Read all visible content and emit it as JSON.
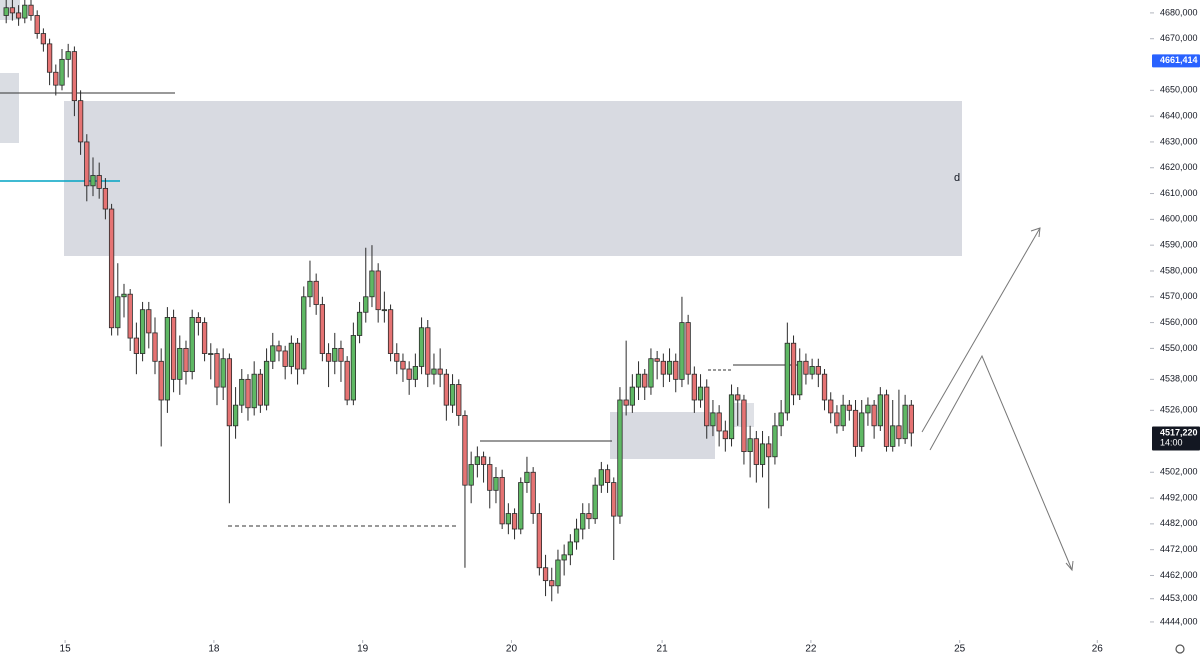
{
  "chart_data": {
    "type": "candlestick",
    "up_color": "#5fb864",
    "down_color": "#e57373",
    "border_color": "#2a2a2a",
    "xlim": [
      -1,
      184.5
    ],
    "xticks": [
      {
        "value": 9.5,
        "label": "15"
      },
      {
        "value": 33.5,
        "label": "18"
      },
      {
        "value": 57.5,
        "label": "19"
      },
      {
        "value": 81.5,
        "label": "20"
      },
      {
        "value": 105.8,
        "label": "21"
      },
      {
        "value": 129.8,
        "label": "22"
      },
      {
        "value": 153.8,
        "label": "25"
      },
      {
        "value": 176,
        "label": "26"
      }
    ],
    "ylim": [
      4437,
      4685
    ],
    "yticks": [
      {
        "value": 4680,
        "label": "4680,000"
      },
      {
        "value": 4670,
        "label": "4670,000"
      },
      {
        "value": 4650,
        "label": "4650,000"
      },
      {
        "value": 4640,
        "label": "4640,000"
      },
      {
        "value": 4630,
        "label": "4630,000"
      },
      {
        "value": 4620,
        "label": "4620,000"
      },
      {
        "value": 4610,
        "label": "4610,000"
      },
      {
        "value": 4600,
        "label": "4600,000"
      },
      {
        "value": 4590,
        "label": "4590,000"
      },
      {
        "value": 4580,
        "label": "4580,000"
      },
      {
        "value": 4570,
        "label": "4570,000"
      },
      {
        "value": 4560,
        "label": "4560,000"
      },
      {
        "value": 4550,
        "label": "4550,000"
      },
      {
        "value": 4538,
        "label": "4538,000"
      },
      {
        "value": 4526,
        "label": "4526,000"
      },
      {
        "value": 4502,
        "label": "4502,000"
      },
      {
        "value": 4492,
        "label": "4492,000"
      },
      {
        "value": 4482,
        "label": "4482,000"
      },
      {
        "value": 4472,
        "label": "4472,000"
      },
      {
        "value": 4462,
        "label": "4462,000"
      },
      {
        "value": 4453,
        "label": "4453,000"
      },
      {
        "value": 4444,
        "label": "4444,000"
      }
    ],
    "price_tags": [
      {
        "value": 4661.414,
        "label": "4661,414",
        "color": "#2962ff"
      },
      {
        "value": 4517.22,
        "label": "4517,220",
        "time": "14:00",
        "color": "#131722"
      }
    ],
    "zone_label": "d",
    "ohlc": [
      [
        4679,
        4685,
        4676,
        4682
      ],
      [
        4682,
        4685,
        4677,
        4680
      ],
      [
        4680,
        4683,
        4675,
        4678
      ],
      [
        4678,
        4685,
        4676,
        4683
      ],
      [
        4683,
        4685,
        4677,
        4679
      ],
      [
        4679,
        4681,
        4670,
        4672
      ],
      [
        4672,
        4674,
        4665,
        4668
      ],
      [
        4668,
        4670,
        4652,
        4657
      ],
      [
        4657,
        4660,
        4648,
        4652
      ],
      [
        4652,
        4666,
        4650,
        4662
      ],
      [
        4662,
        4668,
        4655,
        4665
      ],
      [
        4665,
        4667,
        4640,
        4646
      ],
      [
        4646,
        4650,
        4625,
        4630
      ],
      [
        4630,
        4633,
        4607,
        4613
      ],
      [
        4613,
        4624,
        4609,
        4617
      ],
      [
        4617,
        4622,
        4608,
        4612
      ],
      [
        4612,
        4616,
        4600,
        4604
      ],
      [
        4604,
        4606,
        4555,
        4558
      ],
      [
        4558,
        4583,
        4555,
        4570
      ],
      [
        4570,
        4575,
        4562,
        4571
      ],
      [
        4571,
        4573,
        4549,
        4554
      ],
      [
        4554,
        4560,
        4540,
        4548
      ],
      [
        4548,
        4568,
        4545,
        4565
      ],
      [
        4565,
        4568,
        4550,
        4556
      ],
      [
        4556,
        4562,
        4540,
        4545
      ],
      [
        4545,
        4550,
        4512,
        4530
      ],
      [
        4530,
        4566,
        4525,
        4562
      ],
      [
        4562,
        4565,
        4533,
        4538
      ],
      [
        4538,
        4555,
        4532,
        4550
      ],
      [
        4550,
        4553,
        4536,
        4541
      ],
      [
        4541,
        4565,
        4538,
        4562
      ],
      [
        4562,
        4564,
        4555,
        4560
      ],
      [
        4560,
        4562,
        4545,
        4548
      ],
      [
        4548,
        4552,
        4538,
        4548
      ],
      [
        4548,
        4550,
        4528,
        4535
      ],
      [
        4535,
        4550,
        4530,
        4546
      ],
      [
        4546,
        4548,
        4490,
        4520
      ],
      [
        4520,
        4535,
        4515,
        4528
      ],
      [
        4528,
        4542,
        4525,
        4538
      ],
      [
        4538,
        4540,
        4522,
        4527
      ],
      [
        4527,
        4545,
        4524,
        4540
      ],
      [
        4540,
        4542,
        4525,
        4528
      ],
      [
        4528,
        4550,
        4526,
        4545
      ],
      [
        4545,
        4556,
        4542,
        4551
      ],
      [
        4551,
        4553,
        4545,
        4549
      ],
      [
        4549,
        4551,
        4538,
        4543
      ],
      [
        4543,
        4555,
        4540,
        4552
      ],
      [
        4552,
        4554,
        4536,
        4542
      ],
      [
        4542,
        4574,
        4540,
        4570
      ],
      [
        4570,
        4584,
        4566,
        4576
      ],
      [
        4576,
        4579,
        4563,
        4567
      ],
      [
        4567,
        4570,
        4545,
        4548
      ],
      [
        4548,
        4552,
        4535,
        4545
      ],
      [
        4545,
        4556,
        4540,
        4550
      ],
      [
        4550,
        4553,
        4537,
        4545
      ],
      [
        4545,
        4547,
        4528,
        4530
      ],
      [
        4530,
        4560,
        4528,
        4555
      ],
      [
        4555,
        4568,
        4552,
        4564
      ],
      [
        4564,
        4589,
        4560,
        4570
      ],
      [
        4570,
        4590,
        4566,
        4580
      ],
      [
        4580,
        4583,
        4560,
        4565
      ],
      [
        4565,
        4572,
        4560,
        4565
      ],
      [
        4565,
        4567,
        4545,
        4548
      ],
      [
        4548,
        4552,
        4540,
        4545
      ],
      [
        4545,
        4548,
        4537,
        4542
      ],
      [
        4542,
        4545,
        4532,
        4538
      ],
      [
        4538,
        4548,
        4535,
        4543
      ],
      [
        4543,
        4562,
        4540,
        4558
      ],
      [
        4558,
        4561,
        4535,
        4540
      ],
      [
        4540,
        4548,
        4536,
        4542
      ],
      [
        4542,
        4550,
        4535,
        4540
      ],
      [
        4540,
        4542,
        4522,
        4528
      ],
      [
        4528,
        4540,
        4525,
        4536
      ],
      [
        4536,
        4538,
        4520,
        4524
      ],
      [
        4524,
        4526,
        4465,
        4497
      ],
      [
        4497,
        4510,
        4490,
        4505
      ],
      [
        4505,
        4512,
        4500,
        4508
      ],
      [
        4508,
        4510,
        4498,
        4505
      ],
      [
        4505,
        4508,
        4488,
        4495
      ],
      [
        4495,
        4504,
        4490,
        4500
      ],
      [
        4500,
        4503,
        4480,
        4482
      ],
      [
        4482,
        4490,
        4478,
        4486
      ],
      [
        4486,
        4488,
        4476,
        4480
      ],
      [
        4480,
        4500,
        4478,
        4498
      ],
      [
        4498,
        4508,
        4494,
        4502
      ],
      [
        4502,
        4504,
        4482,
        4486
      ],
      [
        4486,
        4490,
        4462,
        4465
      ],
      [
        4465,
        4470,
        4454,
        4460
      ],
      [
        4460,
        4465,
        4452,
        4458
      ],
      [
        4458,
        4472,
        4455,
        4468
      ],
      [
        4468,
        4474,
        4462,
        4470
      ],
      [
        4470,
        4478,
        4466,
        4475
      ],
      [
        4475,
        4484,
        4472,
        4480
      ],
      [
        4480,
        4490,
        4476,
        4486
      ],
      [
        4486,
        4490,
        4480,
        4484
      ],
      [
        4484,
        4500,
        4482,
        4497
      ],
      [
        4497,
        4506,
        4494,
        4503
      ],
      [
        4503,
        4505,
        4494,
        4498
      ],
      [
        4498,
        4500,
        4468,
        4485
      ],
      [
        4485,
        4535,
        4482,
        4530
      ],
      [
        4530,
        4553,
        4524,
        4528
      ],
      [
        4528,
        4540,
        4525,
        4535
      ],
      [
        4535,
        4545,
        4530,
        4540
      ],
      [
        4540,
        4542,
        4530,
        4535
      ],
      [
        4535,
        4550,
        4532,
        4546
      ],
      [
        4546,
        4549,
        4538,
        4545
      ],
      [
        4545,
        4548,
        4535,
        4540
      ],
      [
        4540,
        4550,
        4537,
        4545
      ],
      [
        4545,
        4548,
        4533,
        4538
      ],
      [
        4538,
        4570,
        4535,
        4560
      ],
      [
        4560,
        4563,
        4536,
        4540
      ],
      [
        4540,
        4543,
        4525,
        4530
      ],
      [
        4530,
        4540,
        4527,
        4535
      ],
      [
        4535,
        4538,
        4515,
        4520
      ],
      [
        4520,
        4530,
        4516,
        4525
      ],
      [
        4525,
        4528,
        4512,
        4518
      ],
      [
        4518,
        4522,
        4510,
        4515
      ],
      [
        4515,
        4536,
        4512,
        4532
      ],
      [
        4532,
        4535,
        4520,
        4530
      ],
      [
        4530,
        4532,
        4505,
        4510
      ],
      [
        4510,
        4520,
        4500,
        4515
      ],
      [
        4515,
        4518,
        4498,
        4505
      ],
      [
        4505,
        4518,
        4500,
        4513
      ],
      [
        4513,
        4516,
        4488,
        4508
      ],
      [
        4508,
        4525,
        4505,
        4520
      ],
      [
        4520,
        4530,
        4516,
        4525
      ],
      [
        4525,
        4560,
        4522,
        4552
      ],
      [
        4552,
        4555,
        4528,
        4532
      ],
      [
        4532,
        4550,
        4530,
        4545
      ],
      [
        4545,
        4548,
        4536,
        4540
      ],
      [
        4540,
        4546,
        4538,
        4543
      ],
      [
        4543,
        4546,
        4535,
        4540
      ],
      [
        4540,
        4542,
        4526,
        4530
      ],
      [
        4530,
        4533,
        4521,
        4525
      ],
      [
        4525,
        4528,
        4517,
        4520
      ],
      [
        4520,
        4532,
        4518,
        4528
      ],
      [
        4528,
        4530,
        4522,
        4526
      ],
      [
        4526,
        4530,
        4508,
        4512
      ],
      [
        4512,
        4530,
        4510,
        4525
      ],
      [
        4525,
        4531,
        4520,
        4528
      ],
      [
        4528,
        4530,
        4515,
        4520
      ],
      [
        4520,
        4535,
        4518,
        4532
      ],
      [
        4532,
        4534,
        4510,
        4512
      ],
      [
        4512,
        4530,
        4510,
        4520
      ],
      [
        4520,
        4534,
        4512,
        4515
      ],
      [
        4515,
        4532,
        4513,
        4528
      ],
      [
        4528,
        4530,
        4512,
        4517.22
      ]
    ]
  }
}
